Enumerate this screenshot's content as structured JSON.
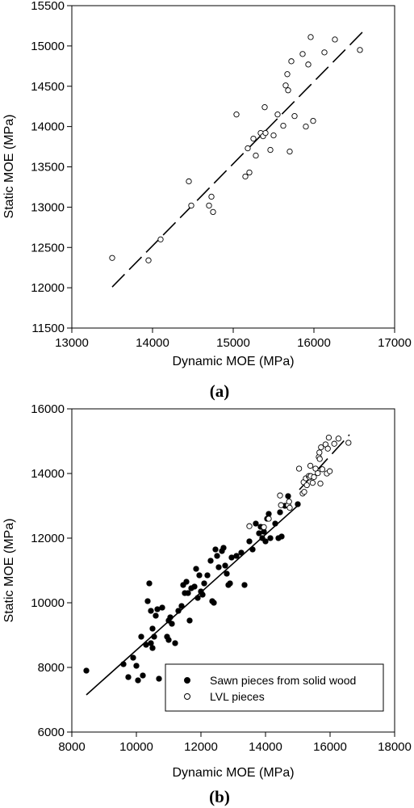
{
  "chart_data": [
    {
      "type": "scatter",
      "caption": "(a)",
      "xlabel": "Dynamic MOE (MPa)",
      "ylabel": "Static MOE (MPa)",
      "xlim": [
        13000,
        17000
      ],
      "ylim": [
        11500,
        15500
      ],
      "xticks": [
        13000,
        14000,
        15000,
        16000,
        17000
      ],
      "yticks": [
        11500,
        12000,
        12500,
        13000,
        13500,
        14000,
        14500,
        15000,
        15500
      ],
      "grid": false,
      "series": [
        {
          "marker": "open-circle",
          "points": [
            [
              13500,
              12370
            ],
            [
              13950,
              12340
            ],
            [
              14100,
              12600
            ],
            [
              14450,
              13320
            ],
            [
              14480,
              13020
            ],
            [
              14700,
              13020
            ],
            [
              14730,
              13130
            ],
            [
              14750,
              12940
            ],
            [
              15040,
              14150
            ],
            [
              15150,
              13380
            ],
            [
              15180,
              13730
            ],
            [
              15200,
              13430
            ],
            [
              15250,
              13850
            ],
            [
              15280,
              13640
            ],
            [
              15340,
              13920
            ],
            [
              15370,
              13880
            ],
            [
              15390,
              14240
            ],
            [
              15400,
              13920
            ],
            [
              15460,
              13710
            ],
            [
              15500,
              13890
            ],
            [
              15550,
              14150
            ],
            [
              15620,
              14010
            ],
            [
              15650,
              14510
            ],
            [
              15670,
              14650
            ],
            [
              15680,
              14450
            ],
            [
              15700,
              13690
            ],
            [
              15720,
              14810
            ],
            [
              15760,
              14130
            ],
            [
              15860,
              14900
            ],
            [
              15900,
              14000
            ],
            [
              15930,
              14770
            ],
            [
              15960,
              15110
            ],
            [
              15990,
              14070
            ],
            [
              16130,
              14920
            ],
            [
              16260,
              15080
            ],
            [
              16570,
              14950
            ]
          ]
        }
      ],
      "trendlines": [
        {
          "style": "dashed",
          "from": [
            13500,
            12010
          ],
          "to": [
            16600,
            15170
          ]
        }
      ]
    },
    {
      "type": "scatter",
      "caption": "(b)",
      "xlabel": "Dynamic MOE (MPa)",
      "ylabel": "Static MOE (MPa)",
      "xlim": [
        8000,
        18000
      ],
      "ylim": [
        6000,
        16000
      ],
      "xticks": [
        8000,
        10000,
        12000,
        14000,
        16000,
        18000
      ],
      "yticks": [
        6000,
        8000,
        10000,
        12000,
        14000,
        16000
      ],
      "grid": false,
      "legend_position": "bottom-right",
      "series": [
        {
          "name": "Sawn pieces from solid wood",
          "marker": "filled-circle",
          "points": [
            [
              8450,
              7900
            ],
            [
              9600,
              8100
            ],
            [
              9750,
              7700
            ],
            [
              9900,
              8300
            ],
            [
              10000,
              8050
            ],
            [
              10050,
              7600
            ],
            [
              10150,
              8950
            ],
            [
              10200,
              7750
            ],
            [
              10300,
              8700
            ],
            [
              10350,
              10050
            ],
            [
              10400,
              10600
            ],
            [
              10450,
              9750
            ],
            [
              10450,
              8750
            ],
            [
              10500,
              8600
            ],
            [
              10500,
              9200
            ],
            [
              10550,
              8950
            ],
            [
              10600,
              9600
            ],
            [
              10650,
              9800
            ],
            [
              10700,
              7650
            ],
            [
              10800,
              9850
            ],
            [
              10950,
              8950
            ],
            [
              11000,
              8850
            ],
            [
              11000,
              9450
            ],
            [
              11050,
              9550
            ],
            [
              11100,
              9350
            ],
            [
              11200,
              8750
            ],
            [
              11300,
              9750
            ],
            [
              11400,
              9900
            ],
            [
              11450,
              10550
            ],
            [
              11500,
              10300
            ],
            [
              11550,
              10650
            ],
            [
              11600,
              10300
            ],
            [
              11650,
              9450
            ],
            [
              11700,
              10450
            ],
            [
              11800,
              10500
            ],
            [
              11850,
              11050
            ],
            [
              11900,
              10150
            ],
            [
              11950,
              10850
            ],
            [
              12000,
              10350
            ],
            [
              12050,
              10250
            ],
            [
              12100,
              10600
            ],
            [
              12200,
              10850
            ],
            [
              12300,
              11300
            ],
            [
              12350,
              10050
            ],
            [
              12400,
              10000
            ],
            [
              12450,
              11650
            ],
            [
              12500,
              11450
            ],
            [
              12550,
              11100
            ],
            [
              12650,
              11600
            ],
            [
              12700,
              11700
            ],
            [
              12750,
              11150
            ],
            [
              12800,
              10900
            ],
            [
              12850,
              10550
            ],
            [
              12900,
              10600
            ],
            [
              12950,
              11400
            ],
            [
              13100,
              11450
            ],
            [
              13250,
              11550
            ],
            [
              13350,
              10550
            ],
            [
              13500,
              11900
            ],
            [
              13600,
              11650
            ],
            [
              13700,
              12450
            ],
            [
              13800,
              12150
            ],
            [
              13850,
              12350
            ],
            [
              13900,
              12000
            ],
            [
              13950,
              12200
            ],
            [
              14000,
              11900
            ],
            [
              14050,
              12600
            ],
            [
              14100,
              12750
            ],
            [
              14150,
              12000
            ],
            [
              14300,
              12450
            ],
            [
              14400,
              12000
            ],
            [
              14450,
              12800
            ],
            [
              14500,
              12050
            ],
            [
              14600,
              13000
            ],
            [
              14700,
              13300
            ],
            [
              15000,
              13050
            ]
          ]
        },
        {
          "name": "LVL pieces",
          "marker": "open-circle",
          "points": [
            [
              13500,
              12370
            ],
            [
              13950,
              12340
            ],
            [
              14100,
              12600
            ],
            [
              14450,
              13320
            ],
            [
              14480,
              13020
            ],
            [
              14700,
              13020
            ],
            [
              14730,
              13130
            ],
            [
              14750,
              12940
            ],
            [
              15040,
              14150
            ],
            [
              15150,
              13380
            ],
            [
              15180,
              13730
            ],
            [
              15200,
              13430
            ],
            [
              15250,
              13850
            ],
            [
              15280,
              13640
            ],
            [
              15340,
              13920
            ],
            [
              15370,
              13880
            ],
            [
              15390,
              14240
            ],
            [
              15400,
              13920
            ],
            [
              15460,
              13710
            ],
            [
              15500,
              13890
            ],
            [
              15550,
              14150
            ],
            [
              15620,
              14010
            ],
            [
              15650,
              14510
            ],
            [
              15670,
              14650
            ],
            [
              15680,
              14450
            ],
            [
              15700,
              13690
            ],
            [
              15720,
              14810
            ],
            [
              15760,
              14130
            ],
            [
              15860,
              14900
            ],
            [
              15900,
              14000
            ],
            [
              15930,
              14770
            ],
            [
              15960,
              15110
            ],
            [
              15990,
              14070
            ],
            [
              16130,
              14920
            ],
            [
              16260,
              15080
            ],
            [
              16570,
              14950
            ]
          ]
        }
      ],
      "trendlines": [
        {
          "style": "solid",
          "from": [
            8450,
            7150
          ],
          "to": [
            15050,
            13050
          ]
        },
        {
          "style": "dashed",
          "from": [
            15050,
            13500
          ],
          "to": [
            16600,
            15200
          ]
        }
      ]
    }
  ]
}
